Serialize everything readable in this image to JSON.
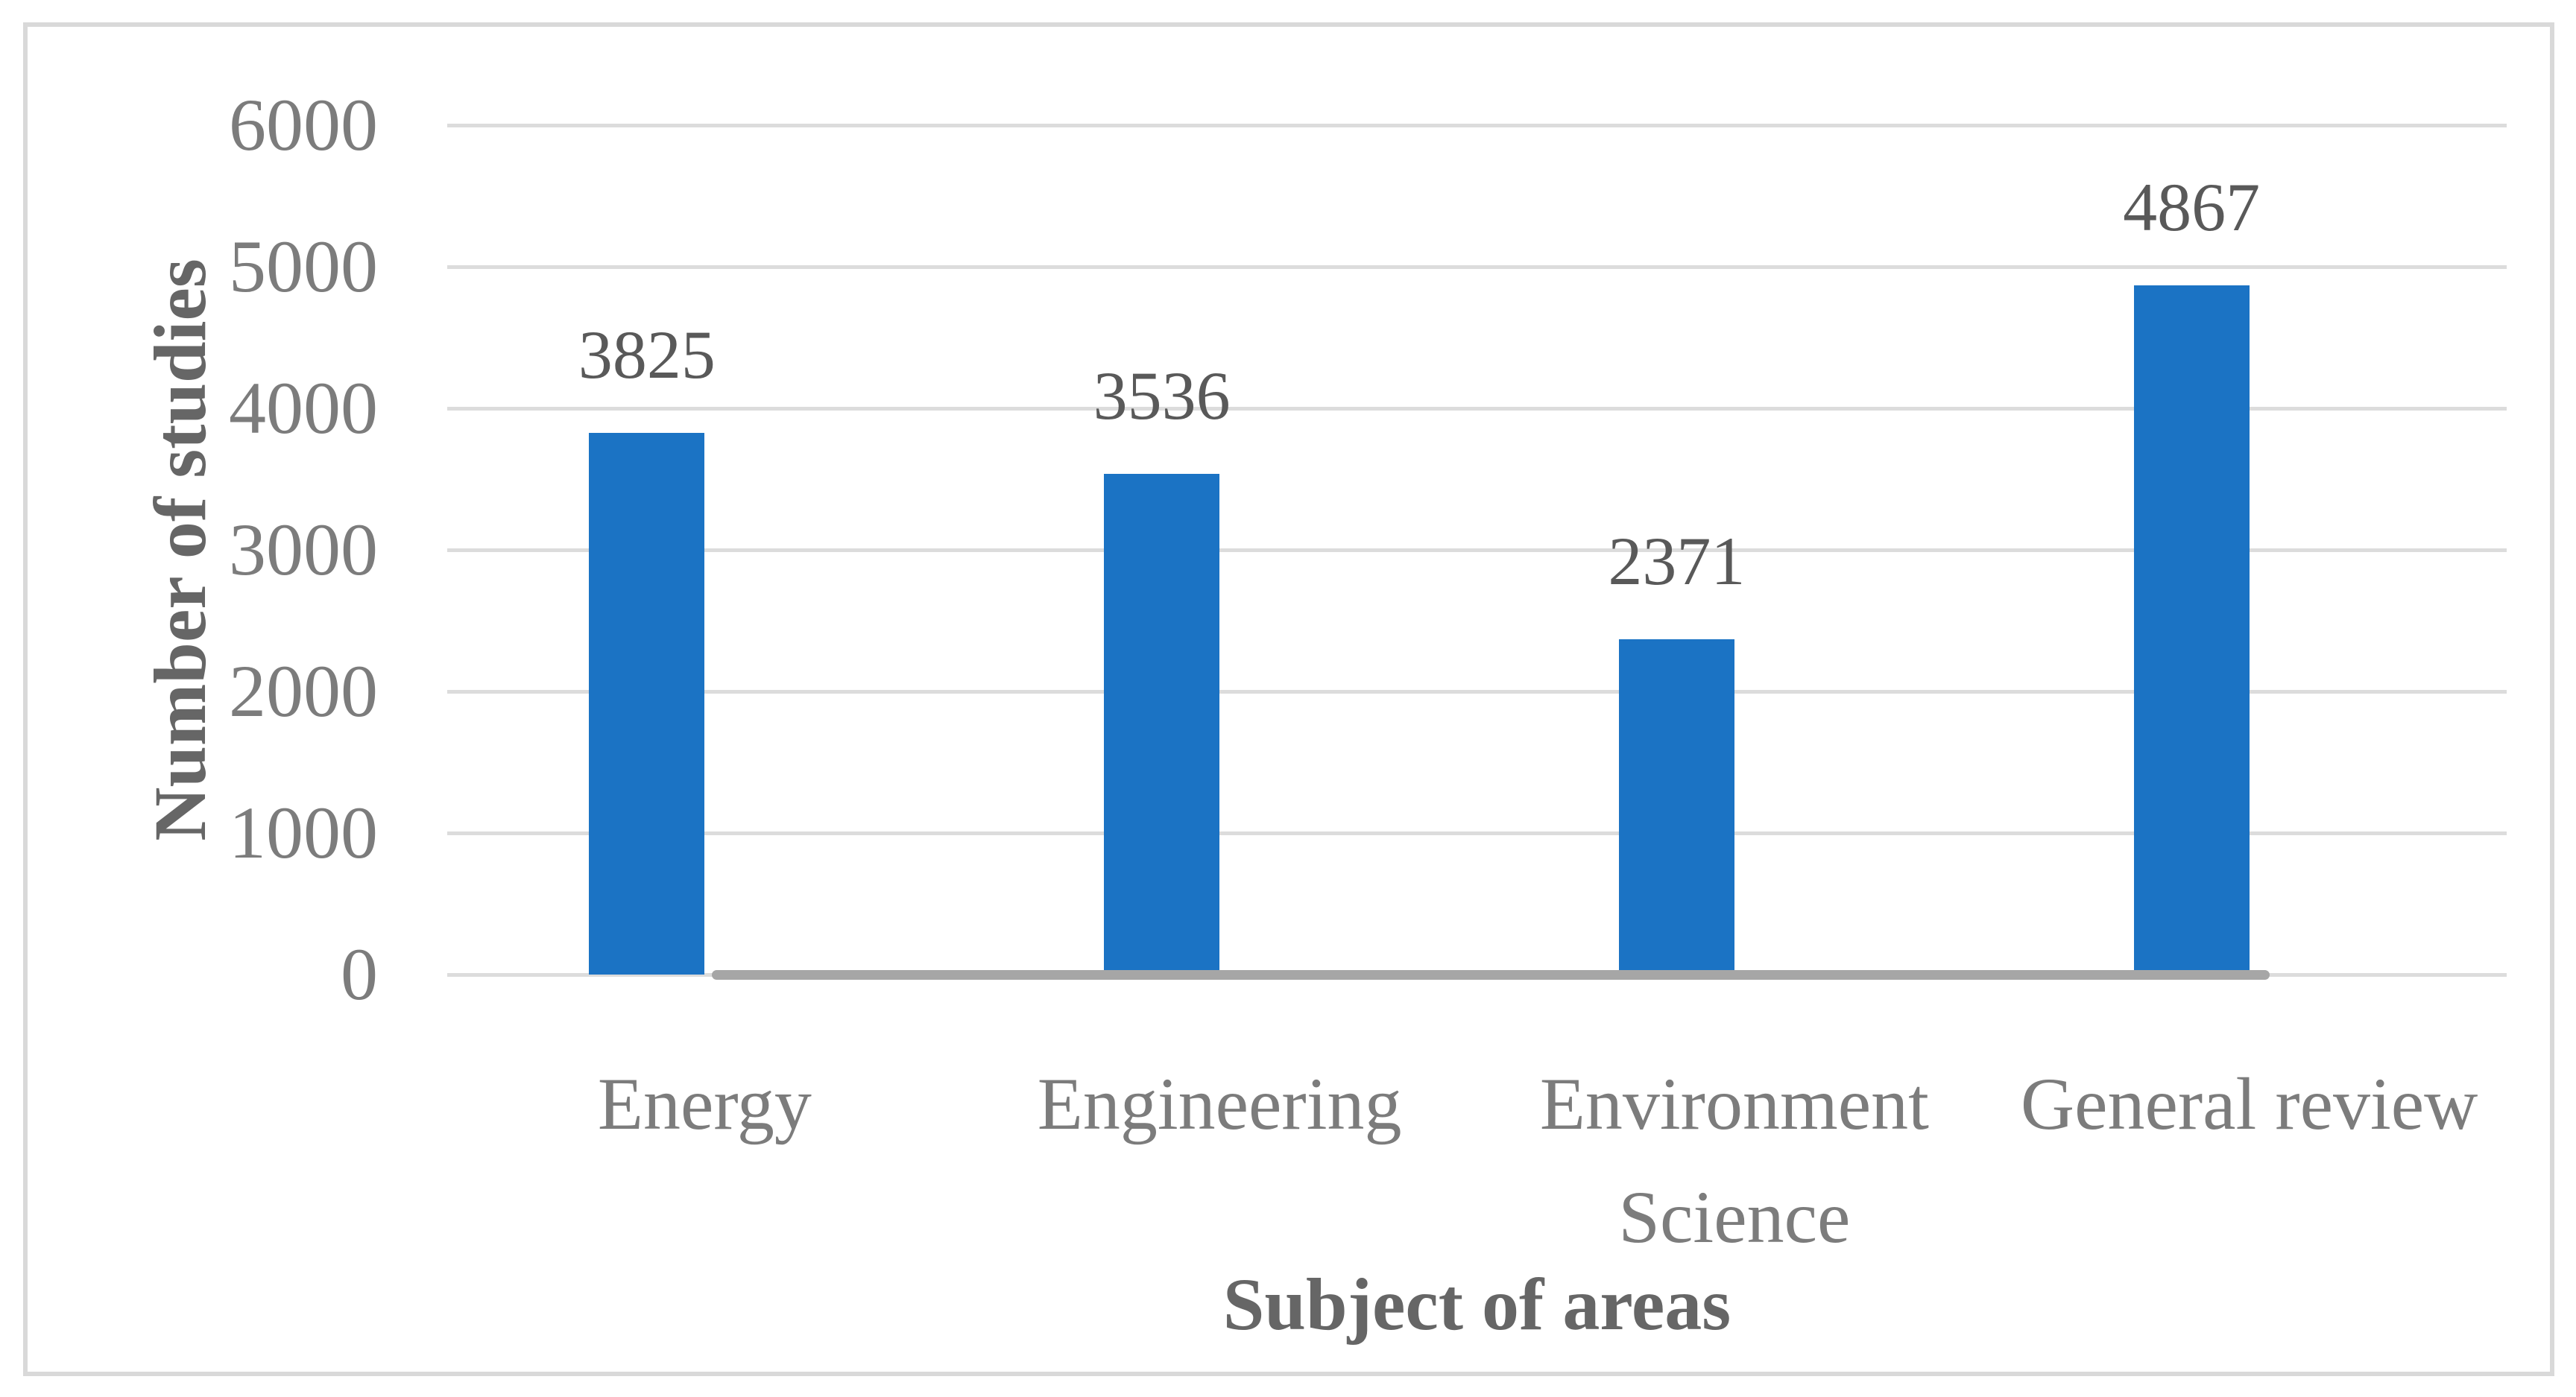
{
  "figure": {
    "background_color": "#ffffff",
    "border_color": "#d9d9d9"
  },
  "chart_data": {
    "type": "bar",
    "title": "",
    "xlabel": "Subject of areas",
    "ylabel": "Number of studies",
    "categories": [
      "Energy",
      "Engineering",
      "Environment Science",
      "General review"
    ],
    "series": [
      {
        "name": "Number of studies",
        "values": [
          3825,
          3536,
          2371,
          4867
        ]
      }
    ],
    "data_labels": [
      "3825",
      "3536",
      "2371",
      "4867"
    ],
    "ylim": [
      0,
      6000
    ],
    "yticks": [
      0,
      1000,
      2000,
      3000,
      4000,
      5000,
      6000
    ],
    "grid": "horizontal",
    "legend_position": "none",
    "baseline_line": {
      "value": 0,
      "span": "from first category to last category",
      "color": "#a6a6a6",
      "cap": "round"
    },
    "style": {
      "bar_color": "#1b73c4",
      "gridline_color": "#dcdcdc",
      "tick_label_color": "#7c7c7c",
      "category_label_color": "#7c7c7c",
      "data_label_color": "#595959",
      "axis_title_color": "#666666"
    }
  }
}
